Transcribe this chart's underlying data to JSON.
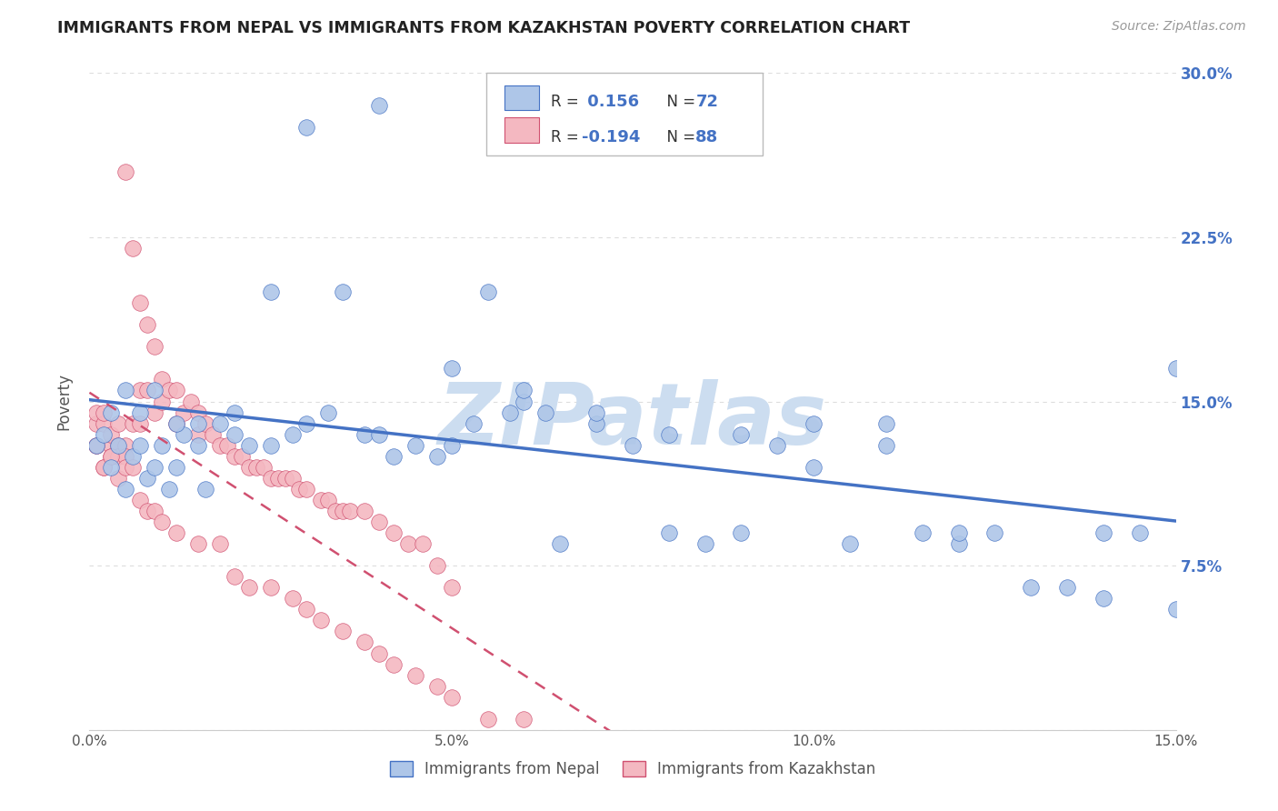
{
  "title": "IMMIGRANTS FROM NEPAL VS IMMIGRANTS FROM KAZAKHSTAN POVERTY CORRELATION CHART",
  "source": "Source: ZipAtlas.com",
  "xlabel_nepal": "Immigrants from Nepal",
  "xlabel_kazakhstan": "Immigrants from Kazakhstan",
  "ylabel": "Poverty",
  "xlim": [
    0,
    0.15
  ],
  "ylim": [
    0,
    0.3
  ],
  "nepal_R": 0.156,
  "nepal_N": 72,
  "kazakhstan_R": -0.194,
  "kazakhstan_N": 88,
  "nepal_color": "#aec6e8",
  "nepal_line_color": "#4472c4",
  "kazakhstan_color": "#f4b8c1",
  "kazakhstan_line_color": "#d05070",
  "nepal_x": [
    0.001,
    0.002,
    0.003,
    0.004,
    0.005,
    0.006,
    0.007,
    0.008,
    0.009,
    0.01,
    0.011,
    0.012,
    0.013,
    0.015,
    0.016,
    0.018,
    0.02,
    0.022,
    0.025,
    0.028,
    0.03,
    0.033,
    0.035,
    0.038,
    0.04,
    0.042,
    0.045,
    0.048,
    0.05,
    0.053,
    0.055,
    0.058,
    0.06,
    0.063,
    0.065,
    0.07,
    0.075,
    0.08,
    0.085,
    0.09,
    0.095,
    0.1,
    0.105,
    0.11,
    0.115,
    0.12,
    0.125,
    0.13,
    0.135,
    0.14,
    0.145,
    0.15,
    0.003,
    0.005,
    0.007,
    0.009,
    0.012,
    0.015,
    0.02,
    0.025,
    0.03,
    0.04,
    0.05,
    0.06,
    0.07,
    0.08,
    0.09,
    0.1,
    0.11,
    0.12,
    0.14,
    0.15
  ],
  "nepal_y": [
    0.13,
    0.135,
    0.12,
    0.13,
    0.11,
    0.125,
    0.13,
    0.115,
    0.12,
    0.13,
    0.11,
    0.12,
    0.135,
    0.13,
    0.11,
    0.14,
    0.135,
    0.13,
    0.13,
    0.135,
    0.14,
    0.145,
    0.2,
    0.135,
    0.135,
    0.125,
    0.13,
    0.125,
    0.13,
    0.14,
    0.2,
    0.145,
    0.15,
    0.145,
    0.085,
    0.14,
    0.13,
    0.09,
    0.085,
    0.09,
    0.13,
    0.14,
    0.085,
    0.14,
    0.09,
    0.085,
    0.09,
    0.065,
    0.065,
    0.09,
    0.09,
    0.165,
    0.145,
    0.155,
    0.145,
    0.155,
    0.14,
    0.14,
    0.145,
    0.2,
    0.275,
    0.285,
    0.165,
    0.155,
    0.145,
    0.135,
    0.135,
    0.12,
    0.13,
    0.09,
    0.06,
    0.055
  ],
  "kazakhstan_x": [
    0.001,
    0.001,
    0.001,
    0.002,
    0.002,
    0.002,
    0.003,
    0.003,
    0.003,
    0.004,
    0.004,
    0.004,
    0.005,
    0.005,
    0.005,
    0.006,
    0.006,
    0.007,
    0.007,
    0.007,
    0.008,
    0.008,
    0.009,
    0.009,
    0.01,
    0.01,
    0.011,
    0.012,
    0.012,
    0.013,
    0.014,
    0.015,
    0.015,
    0.016,
    0.017,
    0.018,
    0.019,
    0.02,
    0.021,
    0.022,
    0.023,
    0.024,
    0.025,
    0.026,
    0.027,
    0.028,
    0.029,
    0.03,
    0.032,
    0.033,
    0.034,
    0.035,
    0.036,
    0.038,
    0.04,
    0.042,
    0.044,
    0.046,
    0.048,
    0.05,
    0.001,
    0.002,
    0.003,
    0.004,
    0.005,
    0.006,
    0.007,
    0.008,
    0.009,
    0.01,
    0.012,
    0.015,
    0.018,
    0.02,
    0.022,
    0.025,
    0.028,
    0.03,
    0.032,
    0.035,
    0.038,
    0.04,
    0.042,
    0.045,
    0.048,
    0.05,
    0.055,
    0.06
  ],
  "kazakhstan_y": [
    0.14,
    0.145,
    0.13,
    0.14,
    0.145,
    0.12,
    0.13,
    0.135,
    0.125,
    0.14,
    0.13,
    0.125,
    0.255,
    0.13,
    0.125,
    0.22,
    0.14,
    0.195,
    0.155,
    0.14,
    0.185,
    0.155,
    0.175,
    0.145,
    0.16,
    0.15,
    0.155,
    0.155,
    0.14,
    0.145,
    0.15,
    0.145,
    0.135,
    0.14,
    0.135,
    0.13,
    0.13,
    0.125,
    0.125,
    0.12,
    0.12,
    0.12,
    0.115,
    0.115,
    0.115,
    0.115,
    0.11,
    0.11,
    0.105,
    0.105,
    0.1,
    0.1,
    0.1,
    0.1,
    0.095,
    0.09,
    0.085,
    0.085,
    0.075,
    0.065,
    0.13,
    0.12,
    0.125,
    0.115,
    0.12,
    0.12,
    0.105,
    0.1,
    0.1,
    0.095,
    0.09,
    0.085,
    0.085,
    0.07,
    0.065,
    0.065,
    0.06,
    0.055,
    0.05,
    0.045,
    0.04,
    0.035,
    0.03,
    0.025,
    0.02,
    0.015,
    0.005,
    0.005
  ],
  "watermark": "ZIPatlas",
  "watermark_color": "#ccddf0",
  "background_color": "#ffffff",
  "grid_color": "#dddddd"
}
